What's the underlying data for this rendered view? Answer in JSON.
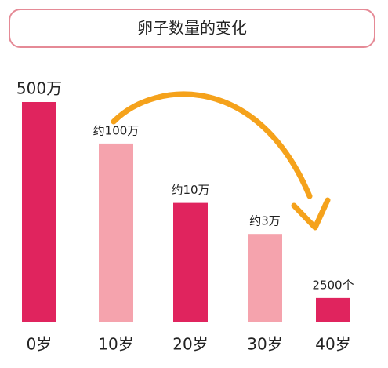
{
  "chart_data": {
    "type": "bar",
    "title": "卵子数量的变化",
    "categories": [
      "0岁",
      "10岁",
      "20岁",
      "30岁",
      "40岁"
    ],
    "values": [
      5000000,
      1000000,
      100000,
      30000,
      2500
    ],
    "value_labels": [
      "500万",
      "约100万",
      "约10万",
      "约3万",
      "2500个"
    ],
    "colors": [
      "#e0245e",
      "#f5a3ad",
      "#e0245e",
      "#f5a3ad",
      "#e0245e"
    ],
    "log_scale": true,
    "ylim": [
      1000,
      5000000
    ]
  }
}
